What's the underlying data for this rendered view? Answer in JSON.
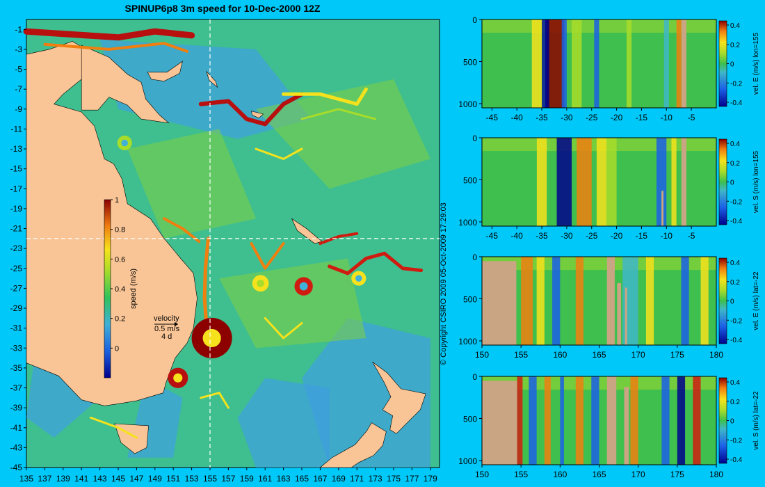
{
  "title": "SPINUP6p8 3m speed for 10-Dec-2000 12Z",
  "copyright": "© Copyright CSIRO 2009   05-Oct-2009 17:29:03",
  "colors": {
    "background": "#00c8f8",
    "land": "#f9c596",
    "ocean_base": "#3fbf8f",
    "sections_land": "#c9a583"
  },
  "chart_data": [
    {
      "type": "heatmap",
      "name": "map",
      "x_ticks": [
        "135",
        "137",
        "139",
        "141",
        "143",
        "145",
        "147",
        "149",
        "151",
        "153",
        "155",
        "157",
        "159",
        "161",
        "163",
        "165",
        "167",
        "169",
        "171",
        "173",
        "175",
        "177",
        "179"
      ],
      "y_ticks": [
        "-1",
        "-3",
        "-5",
        "-7",
        "-9",
        "-11",
        "-13",
        "-15",
        "-17",
        "-19",
        "-21",
        "-23",
        "-25",
        "-27",
        "-29",
        "-31",
        "-33",
        "-35",
        "-37",
        "-39",
        "-41",
        "-43",
        "-45"
      ],
      "xlim": [
        135,
        180
      ],
      "ylim": [
        -45,
        0
      ],
      "crosshair": {
        "lon": 155,
        "lat": -22
      },
      "colorbar": {
        "label": "speed (m/s)",
        "ticks": [
          "1",
          "0.8",
          "0.6",
          "0.4",
          "0.2",
          "0"
        ],
        "range": [
          -0.2,
          1
        ]
      },
      "velocity_legend": {
        "title": "velocity",
        "speed": "0.5 m/s",
        "time": "4 d"
      }
    },
    {
      "type": "heatmap",
      "name": "section-1",
      "x_ticks": [
        "-45",
        "-40",
        "-35",
        "-30",
        "-25",
        "-20",
        "-15",
        "-10",
        "-5"
      ],
      "xlim": [
        -47,
        0
      ],
      "y_ticks": [
        "0",
        "500",
        "1000"
      ],
      "ylim": [
        0,
        1050
      ],
      "colorbar": {
        "label": "vel. E (m/s) lon=155",
        "ticks": [
          "0.4",
          "0.2",
          "0",
          "-0.2",
          "-0.4"
        ]
      }
    },
    {
      "type": "heatmap",
      "name": "section-2",
      "x_ticks": [
        "-45",
        "-40",
        "-35",
        "-30",
        "-25",
        "-20",
        "-15",
        "-10",
        "-5"
      ],
      "xlim": [
        -47,
        0
      ],
      "y_ticks": [
        "0",
        "500",
        "1000"
      ],
      "ylim": [
        0,
        1050
      ],
      "colorbar": {
        "label": "vel. S (m/s) lon=155",
        "ticks": [
          "0.4",
          "0.2",
          "0",
          "-0.2",
          "-0.4"
        ]
      }
    },
    {
      "type": "heatmap",
      "name": "section-3",
      "x_ticks": [
        "150",
        "155",
        "160",
        "165",
        "170",
        "175",
        "180"
      ],
      "xlim": [
        150,
        180
      ],
      "y_ticks": [
        "0",
        "500",
        "1000"
      ],
      "ylim": [
        0,
        1050
      ],
      "colorbar": {
        "label": "vel. E (m/s) lat=-22",
        "ticks": [
          "0.4",
          "0.2",
          "0",
          "-0.2",
          "-0.4"
        ]
      }
    },
    {
      "type": "heatmap",
      "name": "section-4",
      "x_ticks": [
        "150",
        "155",
        "160",
        "165",
        "170",
        "175",
        "180"
      ],
      "xlim": [
        150,
        180
      ],
      "y_ticks": [
        "0",
        "500",
        "1000"
      ],
      "ylim": [
        0,
        1050
      ],
      "colorbar": {
        "label": "vel. S (m/s) lat=-22",
        "ticks": [
          "0.4",
          "0.2",
          "0",
          "-0.2",
          "-0.4"
        ]
      }
    }
  ]
}
